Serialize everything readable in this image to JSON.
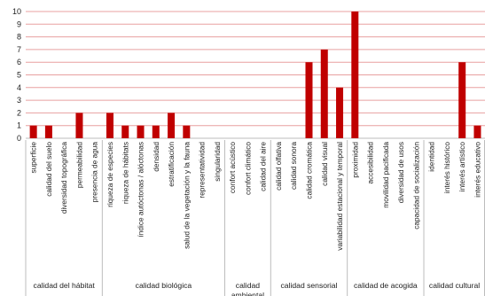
{
  "chart_data": {
    "type": "bar",
    "ylim": [
      0,
      10
    ],
    "yticks": [
      0,
      1,
      2,
      3,
      4,
      5,
      6,
      7,
      8,
      9,
      10
    ],
    "grid": true,
    "bar_color": "#c00000",
    "grid_color": "#e8a0a0",
    "groups": [
      {
        "label": "calidad del hábitat",
        "categories": [
          "superficie",
          "calidad del suelo",
          "diversidad topográfica",
          "permeabilidad",
          "presencia de agua"
        ],
        "values": [
          1,
          1,
          0,
          2,
          0
        ]
      },
      {
        "label": "calidad biológica",
        "categories": [
          "riqueza de especies",
          "riqueza de hábitats",
          "índice autóctonas / alóctonas",
          "densidad",
          "estratificación",
          "salud de la vegetación y la fauna",
          "representatividad",
          "singularidad"
        ],
        "values": [
          2,
          1,
          1,
          1,
          2,
          1,
          0,
          0
        ]
      },
      {
        "label": "calidad ambiental",
        "categories": [
          "confort acústico",
          "confort climático",
          "calidad del aire"
        ],
        "values": [
          0,
          0,
          0
        ]
      },
      {
        "label": "calidad sensorial",
        "categories": [
          "calidad olfativa",
          "calidad sonora",
          "calidad cromática",
          "calidad visual",
          "variabilidad estacional y temporal"
        ],
        "values": [
          0,
          0,
          6,
          7,
          4
        ]
      },
      {
        "label": "calidad de acogida",
        "categories": [
          "proximidad",
          "accesibilidad",
          "movilidad pacificada",
          "diversidad de usos",
          "capacidad de socialización"
        ],
        "values": [
          10,
          0,
          0,
          0,
          0
        ]
      },
      {
        "label": "calidad cultural",
        "categories": [
          "identidad",
          "interés histórico",
          "interés artístico",
          "interés educativo"
        ],
        "values": [
          0,
          0,
          6,
          1
        ]
      }
    ]
  }
}
